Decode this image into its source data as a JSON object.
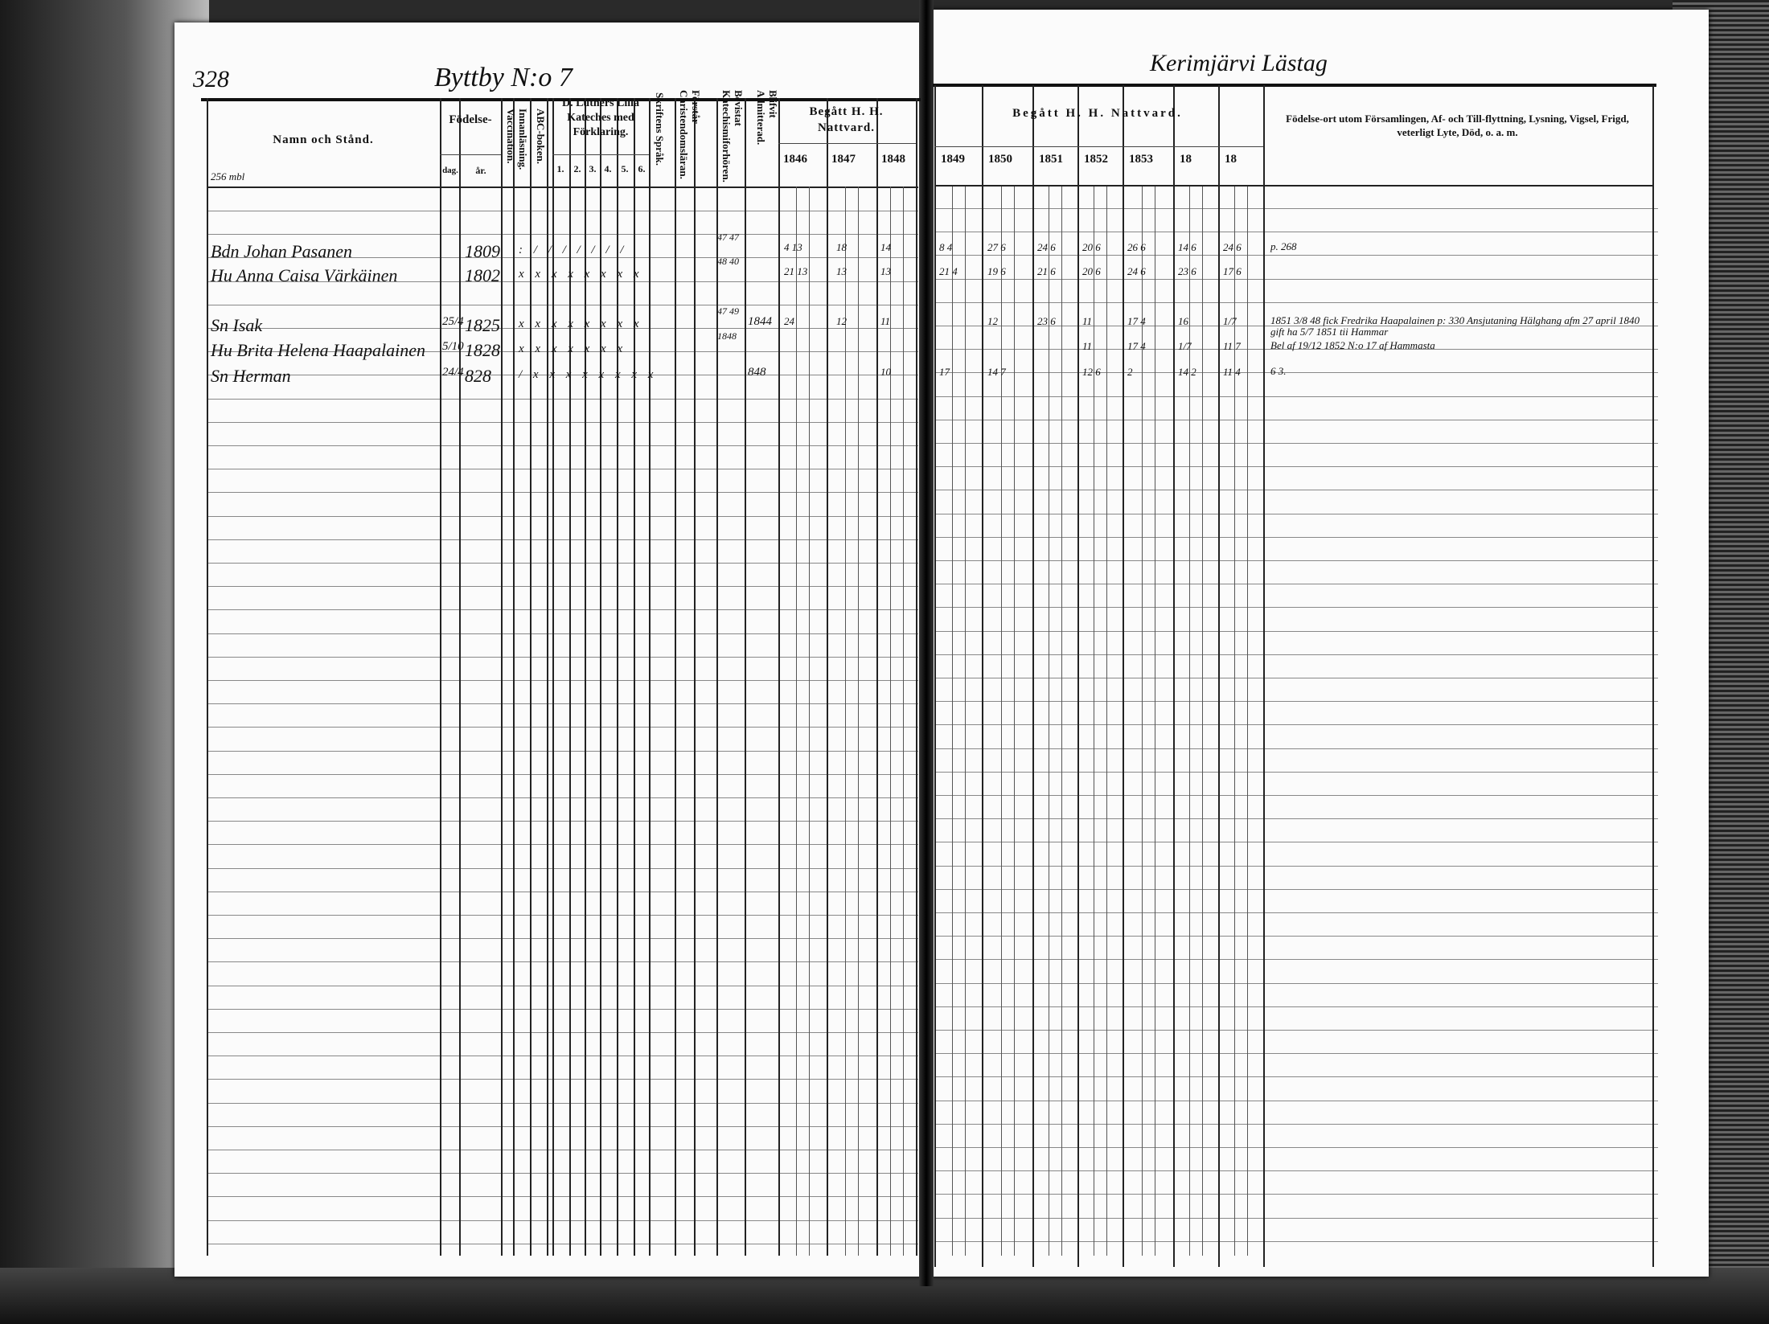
{
  "left_page": {
    "page_number": "328",
    "village": "Byttby N:o 7",
    "headers": {
      "name": "Namn och Stånd.",
      "birth": "Födelse-",
      "day": "dag.",
      "year": "år.",
      "vaccination": "Vaccination.",
      "reading": "Innanläsning.",
      "abc": "ABC-boken.",
      "catechism": "D. Luthers Lilla Kateches med Förklaring.",
      "cat_parts": [
        "1.",
        "2.",
        "3.",
        "4.",
        "5.",
        "6."
      ],
      "scripture": "Skriftens Språk.",
      "understands": "Förstår Christendomsläran.",
      "examinations": "Bevistat Katechismiforhören.",
      "admitted": "Blifvit Admitterad.",
      "communion": "Begått H. H. Nattvard.",
      "years": [
        "1846",
        "1847",
        "1848"
      ]
    },
    "margin_note": "256 mbl",
    "rows": [
      {
        "name": "Bdn Johan Pasanen",
        "day": "",
        "year": "1809",
        "marks": ": / / / / / / /",
        "exam": "47 47",
        "admitted": "",
        "communion": [
          "4 13",
          "18",
          "14"
        ]
      },
      {
        "name": "Hu Anna Caisa Värkäinen",
        "day": "",
        "year": "1802",
        "marks": "x x x x x x x x",
        "exam": "48 40",
        "admitted": "",
        "communion": [
          "21 13",
          "13",
          "13"
        ]
      },
      {
        "name": "Sn Isak",
        "day": "25/4",
        "year": "1825",
        "marks": "x x x x x x x x",
        "exam": "47 49",
        "admitted": "1844",
        "communion": [
          "24",
          "12",
          "11"
        ]
      },
      {
        "name": "Hu Brita Helena Haapalainen",
        "day": "5/10",
        "year": "1828",
        "marks": "x x x x x x x",
        "exam": "1848",
        "admitted": "",
        "communion": [
          "",
          "",
          ""
        ]
      },
      {
        "name": "Sn Herman",
        "day": "24/4",
        "year": "828",
        "marks": "/ x x x x x x x x",
        "exam": "",
        "admitted": "848",
        "communion": [
          "",
          "",
          "10"
        ]
      }
    ]
  },
  "right_page": {
    "heading": "Kerimjärvi Lästag",
    "communion": "Begått H. H. Nattvard.",
    "years": [
      "1849",
      "1850",
      "1851",
      "1852",
      "1853",
      "18",
      "18"
    ],
    "notes_header": "Födelse-ort utom Församlingen, Af- och Till-flyttning, Lysning, Vigsel, Frigd, veterligt Lyte, Död, o. a. m.",
    "rows": [
      {
        "communion": [
          "8 4",
          "27 6",
          "24 6",
          "20 6",
          "26 6",
          "14 6",
          "24 6"
        ],
        "note": "p. 268"
      },
      {
        "communion": [
          "21 4",
          "19 6",
          "21 6",
          "20 6",
          "24 6",
          "23 6",
          "17 6"
        ],
        "note": ""
      },
      {
        "communion": [
          "",
          "12",
          "23 6",
          "11",
          "17 4",
          "16",
          "1/7"
        ],
        "note": "1851 3/8 48 fick Fredrika Haapalainen p: 330 Ansjutaning Hälghang afm 27 april 1840 gift ha 5/7 1851 tii Hammar"
      },
      {
        "communion": [
          "",
          "",
          "",
          "11",
          "17 4",
          "1/7",
          "11 7"
        ],
        "note": "Bel af 19/12 1852 N:o 17 af Hammasta"
      },
      {
        "communion": [
          "17",
          "14 7",
          "",
          "12 6",
          "2",
          "14 2",
          "11 4"
        ],
        "note": "6 3."
      }
    ]
  }
}
